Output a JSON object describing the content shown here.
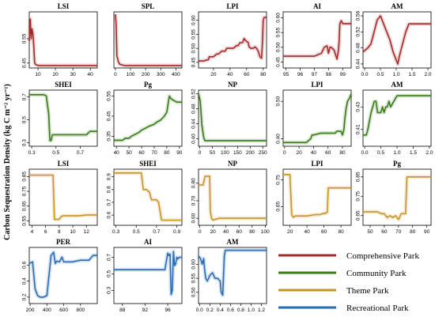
{
  "figure": {
    "ylabel": "Carbon Sequestration Density (kg C m⁻² yr⁻¹)"
  },
  "legend": [
    {
      "label": "Comprehensive Park",
      "color": "#a52a2a"
    },
    {
      "label": "Community Park",
      "color": "#3a7a1a"
    },
    {
      "label": "Theme Park",
      "color": "#c8942a"
    },
    {
      "label": "Recreational Park",
      "color": "#2a6cb4"
    }
  ],
  "chart_data": [
    {
      "type": "line",
      "title": "LSI",
      "group": "Comprehensive Park",
      "color": "#a52a2a",
      "xticks": [
        "10",
        "20",
        "30",
        "40"
      ],
      "yticks": [
        "0.45",
        "0.55"
      ],
      "xlim": [
        5,
        44
      ],
      "ylim": [
        0.43,
        0.66
      ],
      "x": [
        5,
        5.6,
        6.1,
        6.6,
        7.1,
        7.6,
        8.1,
        8.6,
        10,
        20,
        30,
        40,
        44
      ],
      "y": [
        0.54,
        0.63,
        0.55,
        0.59,
        0.57,
        0.52,
        0.45,
        0.445,
        0.44,
        0.44,
        0.44,
        0.44,
        0.44
      ]
    },
    {
      "type": "line",
      "title": "SPL",
      "group": "Comprehensive Park",
      "color": "#a52a2a",
      "xticks": [
        "0",
        "100",
        "200",
        "300",
        "400"
      ],
      "yticks": [],
      "xlim": [
        -10,
        440
      ],
      "ylim": [
        0.43,
        0.66
      ],
      "x": [
        0,
        5,
        10,
        20,
        30,
        60,
        100,
        200,
        300,
        400,
        440
      ],
      "y": [
        0.65,
        0.6,
        0.48,
        0.455,
        0.445,
        0.44,
        0.44,
        0.44,
        0.44,
        0.44,
        0.44
      ]
    },
    {
      "type": "line",
      "title": "LPI",
      "group": "Comprehensive Park",
      "color": "#a52a2a",
      "xticks": [
        "20",
        "40",
        "60",
        "80"
      ],
      "yticks": [
        "0.45",
        "0.50",
        "0.55",
        "0.60"
      ],
      "xlim": [
        2,
        84
      ],
      "ylim": [
        0.43,
        0.63
      ],
      "x": [
        2,
        8,
        14,
        15,
        20,
        24,
        26,
        30,
        34,
        36,
        40,
        44,
        48,
        50,
        52,
        55,
        57,
        58,
        60,
        62,
        63,
        65,
        68,
        70,
        72,
        74,
        76,
        78,
        79,
        80,
        81,
        84
      ],
      "y": [
        0.455,
        0.455,
        0.46,
        0.47,
        0.47,
        0.48,
        0.48,
        0.49,
        0.49,
        0.5,
        0.5,
        0.5,
        0.51,
        0.51,
        0.52,
        0.52,
        0.535,
        0.53,
        0.525,
        0.52,
        0.505,
        0.5,
        0.5,
        0.505,
        0.5,
        0.49,
        0.47,
        0.465,
        0.52,
        0.6,
        0.61,
        0.61
      ]
    },
    {
      "type": "line",
      "title": "AI",
      "group": "Comprehensive Park",
      "color": "#a52a2a",
      "xticks": [
        "95",
        "96",
        "97",
        "98",
        "99"
      ],
      "yticks": [
        "0.45",
        "0.50",
        "0.55",
        "0.60"
      ],
      "xlim": [
        94.8,
        99.6
      ],
      "ylim": [
        0.43,
        0.62
      ],
      "x": [
        94.8,
        95.5,
        96,
        96.5,
        97,
        97.5,
        97.7,
        97.9,
        98.0,
        98.1,
        98.2,
        98.4,
        98.5,
        98.6,
        98.7,
        98.75,
        98.8,
        98.9,
        99.0,
        99.1,
        99.6
      ],
      "y": [
        0.47,
        0.47,
        0.47,
        0.47,
        0.47,
        0.48,
        0.5,
        0.505,
        0.48,
        0.5,
        0.5,
        0.49,
        0.475,
        0.46,
        0.49,
        0.52,
        0.58,
        0.59,
        0.58,
        0.58,
        0.58
      ]
    },
    {
      "type": "line",
      "title": "AM",
      "group": "Comprehensive Park",
      "color": "#a52a2a",
      "xticks": [
        "0.0",
        "0.5",
        "1.0",
        "1.5",
        "2.0"
      ],
      "yticks": [
        "0.44",
        "0.48",
        "0.52",
        "0.56"
      ],
      "xlim": [
        -0.05,
        2.1
      ],
      "ylim": [
        0.43,
        0.57
      ],
      "x": [
        -0.05,
        0.1,
        0.2,
        0.3,
        0.4,
        0.5,
        0.6,
        0.7,
        0.8,
        0.9,
        1.0,
        1.05,
        1.1,
        1.2,
        1.3,
        1.4,
        2.1
      ],
      "y": [
        0.47,
        0.48,
        0.49,
        0.52,
        0.55,
        0.56,
        0.54,
        0.52,
        0.5,
        0.47,
        0.45,
        0.44,
        0.46,
        0.49,
        0.52,
        0.54,
        0.54
      ]
    },
    {
      "type": "line",
      "title": "SHEI",
      "group": "Community Park",
      "color": "#3a7a1a",
      "xticks": [
        "0.3",
        "0.5",
        "0.7"
      ],
      "yticks": [
        "0.3",
        "0.5",
        "0.7"
      ],
      "xlim": [
        0.28,
        0.84
      ],
      "ylim": [
        0.27,
        0.76
      ],
      "x": [
        0.28,
        0.35,
        0.4,
        0.42,
        0.44,
        0.45,
        0.46,
        0.47,
        0.5,
        0.55,
        0.6,
        0.7,
        0.75,
        0.78,
        0.84
      ],
      "y": [
        0.72,
        0.72,
        0.72,
        0.71,
        0.55,
        0.32,
        0.32,
        0.37,
        0.37,
        0.37,
        0.37,
        0.37,
        0.37,
        0.4,
        0.4
      ]
    },
    {
      "type": "line",
      "title": "Pg",
      "group": "Community Park",
      "color": "#3a7a1a",
      "xticks": [
        "40",
        "50",
        "60",
        "70",
        "80",
        "90"
      ],
      "yticks": [
        "0.35",
        "0.45",
        "0.55"
      ],
      "xlim": [
        38,
        92
      ],
      "ylim": [
        0.3,
        0.58
      ],
      "x": [
        38,
        45,
        47,
        50,
        52,
        55,
        58,
        60,
        63,
        66,
        70,
        72,
        75,
        78,
        80,
        82,
        83,
        85,
        88,
        90,
        92
      ],
      "y": [
        0.33,
        0.33,
        0.34,
        0.34,
        0.35,
        0.36,
        0.37,
        0.38,
        0.39,
        0.4,
        0.41,
        0.42,
        0.43,
        0.45,
        0.47,
        0.55,
        0.54,
        0.53,
        0.52,
        0.52,
        0.52
      ]
    },
    {
      "type": "line",
      "title": "NP",
      "group": "Community Park",
      "color": "#3a7a1a",
      "xticks": [
        "0",
        "50",
        "100",
        "150",
        "200",
        "250"
      ],
      "yticks": [
        "0.40",
        "0.44",
        "0.48",
        "0.52"
      ],
      "xlim": [
        -5,
        265
      ],
      "ylim": [
        0.38,
        0.53
      ],
      "x": [
        -5,
        2,
        5,
        8,
        12,
        15,
        20,
        30,
        50,
        100,
        150,
        200,
        265
      ],
      "y": [
        0.52,
        0.5,
        0.47,
        0.44,
        0.42,
        0.405,
        0.395,
        0.395,
        0.395,
        0.395,
        0.395,
        0.395,
        0.395
      ]
    },
    {
      "type": "line",
      "title": "LPI",
      "group": "Community Park",
      "color": "#3a7a1a",
      "xticks": [
        "0",
        "20",
        "40",
        "60",
        "80"
      ],
      "yticks": [
        "0.40",
        "0.50"
      ],
      "xlim": [
        -2,
        92
      ],
      "ylim": [
        0.38,
        0.53
      ],
      "x": [
        -2,
        10,
        20,
        30,
        36,
        38,
        40,
        50,
        60,
        70,
        72,
        75,
        78,
        80,
        82,
        83,
        85,
        87,
        90,
        92
      ],
      "y": [
        0.39,
        0.39,
        0.39,
        0.39,
        0.4,
        0.41,
        0.41,
        0.415,
        0.415,
        0.415,
        0.42,
        0.42,
        0.42,
        0.41,
        0.425,
        0.45,
        0.48,
        0.5,
        0.51,
        0.52
      ]
    },
    {
      "type": "line",
      "title": "AM",
      "group": "Community Park",
      "color": "#3a7a1a",
      "xticks": [
        "0.0",
        "0.5",
        "1.0",
        "1.5",
        "2.0"
      ],
      "yticks": [
        "0.41",
        "0.43"
      ],
      "xlim": [
        -0.05,
        2.05
      ],
      "ylim": [
        0.395,
        0.445
      ],
      "x": [
        -0.05,
        0.05,
        0.1,
        0.2,
        0.3,
        0.35,
        0.4,
        0.5,
        0.55,
        0.6,
        0.65,
        0.7,
        0.75,
        0.8,
        0.9,
        1.0,
        1.05,
        1.1,
        1.2,
        1.5,
        2.05
      ],
      "y": [
        0.405,
        0.405,
        0.41,
        0.425,
        0.435,
        0.435,
        0.425,
        0.425,
        0.43,
        0.425,
        0.43,
        0.43,
        0.435,
        0.43,
        0.435,
        0.44,
        0.44,
        0.44,
        0.44,
        0.44,
        0.44
      ]
    },
    {
      "type": "line",
      "title": "LSI",
      "group": "Theme Park",
      "color": "#c8942a",
      "xticks": [
        "4",
        "6",
        "8",
        "10",
        "12"
      ],
      "yticks": [
        "0.55",
        "0.65",
        "0.75",
        "0.85"
      ],
      "xlim": [
        3.6,
        13.6
      ],
      "ylim": [
        0.52,
        0.9
      ],
      "x": [
        3.6,
        5,
        6,
        6.8,
        7.1,
        7.3,
        7.6,
        8,
        8.3,
        8.6,
        9,
        10,
        11,
        12,
        13.6
      ],
      "y": [
        0.86,
        0.86,
        0.86,
        0.86,
        0.86,
        0.56,
        0.56,
        0.56,
        0.58,
        0.585,
        0.585,
        0.585,
        0.585,
        0.59,
        0.59
      ]
    },
    {
      "type": "line",
      "title": "SHEI",
      "group": "Theme Park",
      "color": "#c8942a",
      "xticks": [
        "0.3",
        "0.5",
        "0.7",
        "0.9"
      ],
      "yticks": [
        "0.6",
        "0.7",
        "0.8",
        "0.9"
      ],
      "xlim": [
        0.28,
        0.95
      ],
      "ylim": [
        0.52,
        0.96
      ],
      "x": [
        0.28,
        0.4,
        0.5,
        0.55,
        0.57,
        0.6,
        0.63,
        0.65,
        0.7,
        0.72,
        0.75,
        0.78,
        0.85,
        0.95
      ],
      "y": [
        0.93,
        0.93,
        0.93,
        0.93,
        0.8,
        0.8,
        0.78,
        0.72,
        0.72,
        0.7,
        0.56,
        0.56,
        0.56,
        0.56
      ]
    },
    {
      "type": "line",
      "title": "NP",
      "group": "Theme Park",
      "color": "#c8942a",
      "xticks": [
        "0",
        "20",
        "40",
        "60",
        "80",
        "100"
      ],
      "yticks": [
        "0.60",
        "0.70",
        "0.80"
      ],
      "xlim": [
        -2,
        102
      ],
      "ylim": [
        0.56,
        0.88
      ],
      "x": [
        -2,
        5,
        8,
        10,
        12,
        15,
        16,
        18,
        20,
        25,
        30,
        40,
        60,
        80,
        102
      ],
      "y": [
        0.79,
        0.79,
        0.84,
        0.84,
        0.84,
        0.84,
        0.64,
        0.6,
        0.59,
        0.595,
        0.6,
        0.6,
        0.6,
        0.6,
        0.6
      ]
    },
    {
      "type": "line",
      "title": "LPI",
      "group": "Theme Park",
      "color": "#c8942a",
      "xticks": [
        "20",
        "40",
        "60",
        "80"
      ],
      "yticks": [
        "0.65",
        "0.75"
      ],
      "xlim": [
        12,
        92
      ],
      "ylim": [
        0.58,
        0.79
      ],
      "x": [
        12,
        18,
        20,
        22,
        24,
        26,
        30,
        40,
        50,
        55,
        60,
        62,
        64,
        65,
        66,
        70,
        80,
        92
      ],
      "y": [
        0.77,
        0.77,
        0.77,
        0.62,
        0.61,
        0.615,
        0.615,
        0.615,
        0.62,
        0.62,
        0.625,
        0.625,
        0.63,
        0.72,
        0.72,
        0.72,
        0.72,
        0.72
      ]
    },
    {
      "type": "line",
      "title": "Pg",
      "group": "Theme Park",
      "color": "#c8942a",
      "xticks": [
        "50",
        "60",
        "70",
        "80",
        "90"
      ],
      "yticks": [
        "0.65",
        "0.75",
        "0.85"
      ],
      "xlim": [
        45,
        93
      ],
      "ylim": [
        0.6,
        0.89
      ],
      "x": [
        45,
        50,
        55,
        58,
        60,
        62,
        64,
        66,
        68,
        70,
        72,
        75,
        76,
        80,
        93
      ],
      "y": [
        0.67,
        0.67,
        0.67,
        0.66,
        0.66,
        0.64,
        0.65,
        0.64,
        0.65,
        0.63,
        0.66,
        0.66,
        0.85,
        0.85,
        0.85
      ]
    },
    {
      "type": "line",
      "title": "PER",
      "group": "Recreational Park",
      "color": "#2a6cb4",
      "xticks": [
        "200",
        "400",
        "600",
        "800"
      ],
      "yticks": [
        "0.2",
        "0.4",
        "0.6"
      ],
      "xlim": [
        190,
        1000
      ],
      "ylim": [
        0.12,
        0.82
      ],
      "x": [
        190,
        230,
        260,
        290,
        320,
        360,
        400,
        450,
        480,
        500,
        520,
        550,
        580,
        600,
        700,
        800,
        900,
        950,
        1000
      ],
      "y": [
        0.62,
        0.64,
        0.3,
        0.22,
        0.2,
        0.2,
        0.22,
        0.72,
        0.76,
        0.62,
        0.65,
        0.64,
        0.7,
        0.64,
        0.64,
        0.66,
        0.66,
        0.72,
        0.72
      ]
    },
    {
      "type": "line",
      "title": "AI",
      "group": "Recreational Park",
      "color": "#2a6cb4",
      "xticks": [
        "88",
        "92",
        "96"
      ],
      "yticks": [
        "0.3",
        "0.5",
        "0.7"
      ],
      "xlim": [
        86.5,
        98.5
      ],
      "ylim": [
        0.14,
        0.82
      ],
      "x": [
        86.5,
        90,
        92,
        94,
        95.5,
        96,
        96.2,
        96.4,
        96.6,
        96.8,
        97,
        97.2,
        97.4,
        97.6,
        97.8,
        98,
        98.5
      ],
      "y": [
        0.55,
        0.55,
        0.55,
        0.55,
        0.55,
        0.75,
        0.72,
        0.74,
        0.25,
        0.3,
        0.77,
        0.6,
        0.62,
        0.7,
        0.68,
        0.7,
        0.7
      ]
    },
    {
      "type": "line",
      "title": "AM",
      "group": "Recreational Park",
      "color": "#2a6cb4",
      "xticks": [
        "0.0",
        "0.2",
        "0.4",
        "0.6",
        "0.8",
        "1.0",
        "1.2"
      ],
      "yticks": [
        "0.50",
        "0.55",
        "0.60"
      ],
      "xlim": [
        -0.02,
        1.3
      ],
      "ylim": [
        0.46,
        0.66
      ],
      "x": [
        -0.02,
        0.02,
        0.05,
        0.08,
        0.1,
        0.12,
        0.15,
        0.2,
        0.25,
        0.3,
        0.35,
        0.4,
        0.42,
        0.45,
        0.48,
        0.5,
        0.6,
        0.8,
        1.0,
        1.3
      ],
      "y": [
        0.63,
        0.62,
        0.6,
        0.62,
        0.58,
        0.55,
        0.54,
        0.56,
        0.57,
        0.55,
        0.55,
        0.54,
        0.5,
        0.49,
        0.63,
        0.65,
        0.65,
        0.65,
        0.65,
        0.65
      ]
    }
  ]
}
